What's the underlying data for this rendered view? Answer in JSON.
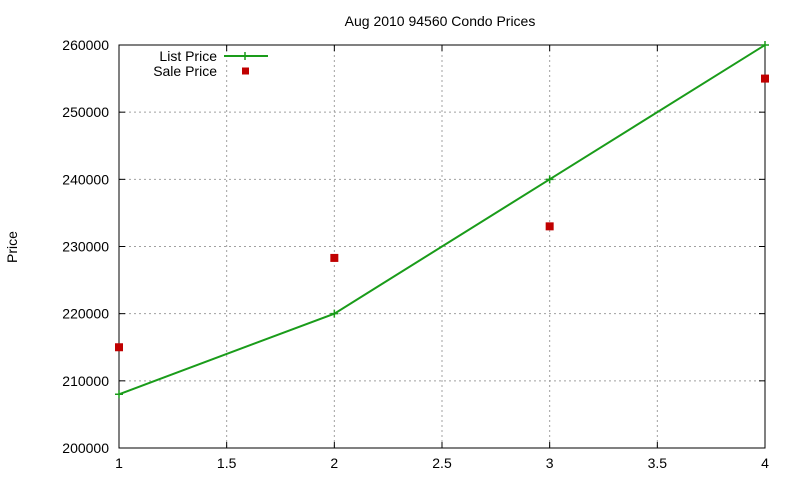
{
  "chart_data": {
    "type": "line",
    "title": "Aug 2010 94560 Condo Prices",
    "xlabel": "",
    "ylabel": "Price",
    "xlim": [
      1,
      4
    ],
    "ylim": [
      200000,
      260000
    ],
    "x_ticks": [
      "1",
      "1.5",
      "2",
      "2.5",
      "3",
      "3.5",
      "4"
    ],
    "y_ticks": [
      "200000",
      "210000",
      "220000",
      "230000",
      "240000",
      "250000",
      "260000"
    ],
    "grid": true,
    "legend_position": "top-left",
    "series": [
      {
        "name": "List Price",
        "style": "line-with-plus-markers",
        "color": "#1a9c1a",
        "x": [
          1,
          2,
          3,
          4
        ],
        "y": [
          208000,
          220000,
          240000,
          260000
        ]
      },
      {
        "name": "Sale Price",
        "style": "square-markers",
        "color": "#c00000",
        "x": [
          1,
          2,
          3,
          4
        ],
        "y": [
          215000,
          228300,
          233000,
          255000
        ]
      }
    ]
  }
}
